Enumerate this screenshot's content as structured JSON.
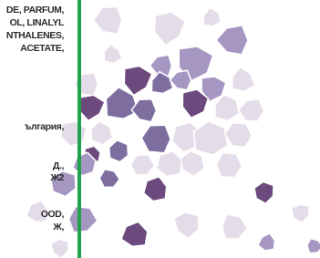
{
  "label_text": {
    "lines": [
      "DE, PARFUM,",
      "OL, LINALYL",
      "NTHALENES,",
      "ACETATE,",
      "ългария,",
      "Д.,",
      "Ж2",
      "OOD,",
      "Ж,"
    ]
  }
}
